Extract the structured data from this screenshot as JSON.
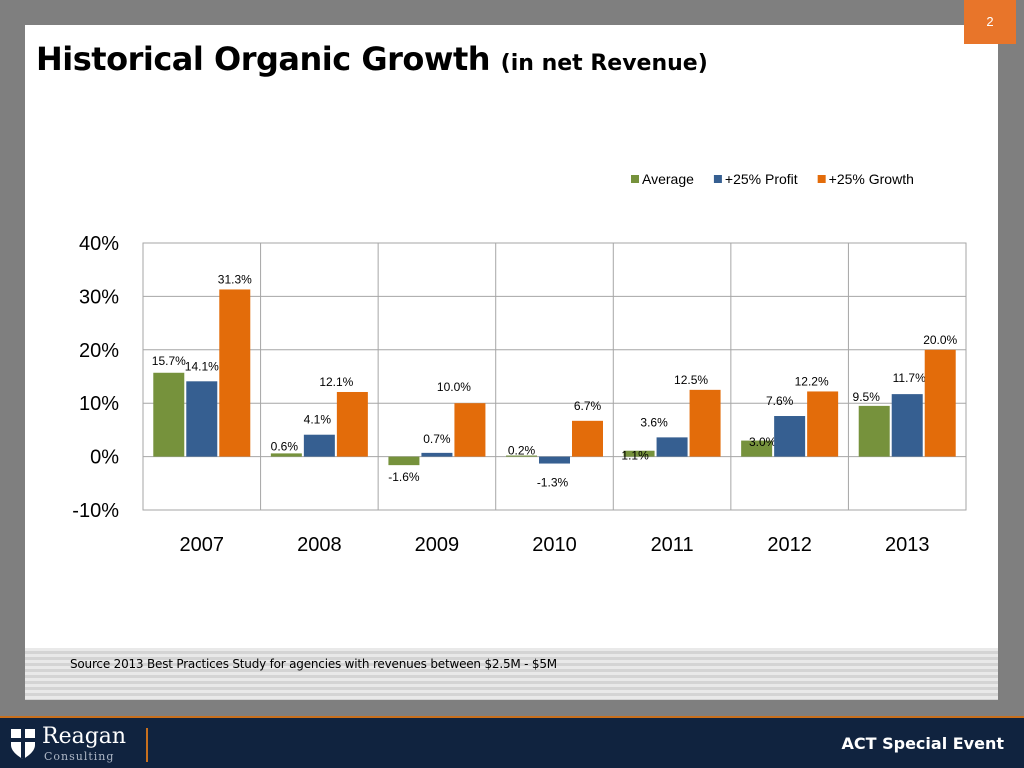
{
  "slide": {
    "page_number": "2",
    "title": "Historical Organic Growth",
    "title_suffix": "(in net Revenue)",
    "source": "Source 2013 Best Practices Study for agencies with revenues between $2.5M - $5M"
  },
  "footer": {
    "logo_name": "Reagan",
    "logo_sub": "Consulting",
    "event": "ACT Special Event"
  },
  "colors": {
    "Average": "#76923c",
    "+25% Profit": "#365f91",
    "+25% Growth": "#e36c0a"
  },
  "chart_data": {
    "type": "bar",
    "categories": [
      "2007",
      "2008",
      "2009",
      "2010",
      "2011",
      "2012",
      "2013"
    ],
    "series": [
      {
        "name": "Average",
        "values": [
          15.7,
          0.6,
          -1.6,
          0.2,
          1.1,
          3.0,
          9.5
        ],
        "labels": [
          "15.7%",
          "0.6%",
          "-1.6%",
          "0.2%",
          "1.1%",
          "3.0%",
          "9.5%"
        ]
      },
      {
        "name": "+25% Profit",
        "values": [
          14.1,
          4.1,
          0.7,
          -1.3,
          3.6,
          7.6,
          11.7
        ],
        "labels": [
          "14.1%",
          "4.1%",
          "0.7%",
          "-1.3%",
          "3.6%",
          "7.6%",
          "11.7%"
        ]
      },
      {
        "name": "+25% Growth",
        "values": [
          31.3,
          12.1,
          10.0,
          6.7,
          12.5,
          12.2,
          20.0
        ],
        "labels": [
          "31.3%",
          "12.1%",
          "10.0%",
          "6.7%",
          "12.5%",
          "12.2%",
          "20.0%"
        ]
      }
    ],
    "ylim": [
      -10,
      40
    ],
    "yticks": [
      40,
      30,
      20,
      10,
      0,
      -10
    ],
    "ytick_labels": [
      "40%",
      "30%",
      "20%",
      "10%",
      "0%",
      "-10%"
    ],
    "grid": true,
    "legend": "top-right"
  }
}
